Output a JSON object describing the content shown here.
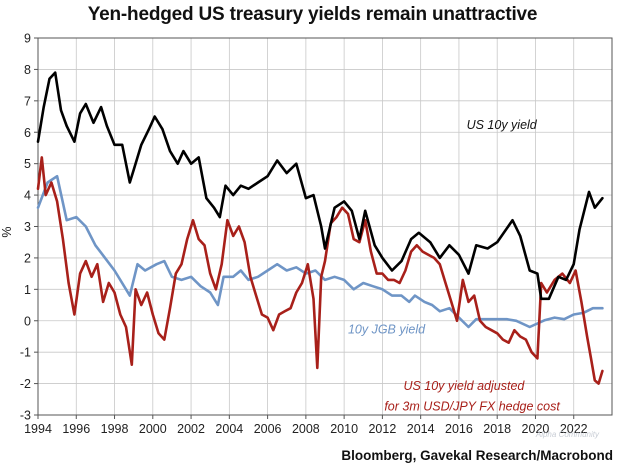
{
  "chart_data": {
    "type": "line",
    "title": "Yen-hedged US treasury yields remain unattractive",
    "xlabel": "",
    "ylabel": "%",
    "xlim": [
      1994,
      2024
    ],
    "ylim": [
      -3,
      9
    ],
    "y_ticks": [
      9,
      8,
      7,
      6,
      5,
      4,
      3,
      2,
      1,
      0,
      -1,
      -2,
      -3
    ],
    "x_ticks": [
      1994,
      1996,
      1998,
      2000,
      2002,
      2004,
      2006,
      2008,
      2010,
      2012,
      2014,
      2016,
      2018,
      2020,
      2022
    ],
    "grid": true,
    "series": [
      {
        "name": "US 10y yield",
        "color": "#000000",
        "x": [
          1994.0,
          1994.3,
          1994.6,
          1994.9,
          1995.2,
          1995.5,
          1995.9,
          1996.2,
          1996.5,
          1996.9,
          1997.3,
          1997.6,
          1998.0,
          1998.4,
          1998.8,
          1999.0,
          1999.4,
          1999.8,
          2000.1,
          2000.5,
          2000.9,
          2001.3,
          2001.6,
          2002.0,
          2002.4,
          2002.8,
          2003.2,
          2003.5,
          2003.8,
          2004.2,
          2004.6,
          2005.0,
          2005.5,
          2006.0,
          2006.5,
          2007.0,
          2007.5,
          2008.0,
          2008.4,
          2008.8,
          2009.0,
          2009.5,
          2010.0,
          2010.4,
          2010.8,
          2011.1,
          2011.6,
          2012.0,
          2012.5,
          2013.0,
          2013.5,
          2013.9,
          2014.5,
          2015.0,
          2015.5,
          2016.0,
          2016.5,
          2016.9,
          2017.5,
          2018.0,
          2018.8,
          2019.2,
          2019.7,
          2020.1,
          2020.3,
          2020.7,
          2021.2,
          2021.6,
          2022.0,
          2022.3,
          2022.8,
          2023.1,
          2023.5
        ],
        "values": [
          5.7,
          6.8,
          7.7,
          7.9,
          6.7,
          6.2,
          5.7,
          6.6,
          6.9,
          6.3,
          6.8,
          6.2,
          5.6,
          5.6,
          4.4,
          4.8,
          5.6,
          6.1,
          6.5,
          6.1,
          5.4,
          5.0,
          5.4,
          5.0,
          5.2,
          3.9,
          3.6,
          3.3,
          4.3,
          4.0,
          4.3,
          4.2,
          4.4,
          4.6,
          5.1,
          4.7,
          5.0,
          3.9,
          4.0,
          3.0,
          2.3,
          3.6,
          3.8,
          3.5,
          2.6,
          3.5,
          2.4,
          2.0,
          1.6,
          1.9,
          2.6,
          2.8,
          2.5,
          2.0,
          2.4,
          2.1,
          1.5,
          2.4,
          2.3,
          2.5,
          3.2,
          2.7,
          1.6,
          1.5,
          0.7,
          0.7,
          1.4,
          1.3,
          1.8,
          2.9,
          4.1,
          3.6,
          3.9
        ]
      },
      {
        "name": "10y JGB yield",
        "color": "#6f95c6",
        "x": [
          1994.0,
          1994.5,
          1995.0,
          1995.5,
          1996.0,
          1996.5,
          1997.0,
          1997.5,
          1998.0,
          1998.6,
          1998.8,
          1999.2,
          1999.6,
          2000.2,
          2000.6,
          2001.0,
          2001.5,
          2002.0,
          2002.5,
          2003.0,
          2003.4,
          2003.7,
          2004.2,
          2004.6,
          2005.0,
          2005.5,
          2006.0,
          2006.5,
          2007.0,
          2007.5,
          2008.0,
          2008.5,
          2009.0,
          2009.5,
          2010.0,
          2010.5,
          2011.0,
          2011.5,
          2012.0,
          2012.5,
          2013.0,
          2013.4,
          2013.7,
          2014.2,
          2014.6,
          2015.0,
          2015.5,
          2016.0,
          2016.5,
          2016.9,
          2017.5,
          2018.0,
          2018.5,
          2019.0,
          2019.7,
          2020.5,
          2021.0,
          2021.5,
          2022.0,
          2022.5,
          2023.0,
          2023.5
        ],
        "values": [
          3.6,
          4.4,
          4.6,
          3.2,
          3.3,
          3.0,
          2.4,
          2.0,
          1.6,
          1.0,
          0.8,
          1.8,
          1.6,
          1.8,
          1.9,
          1.4,
          1.3,
          1.4,
          1.1,
          0.9,
          0.5,
          1.4,
          1.4,
          1.6,
          1.3,
          1.4,
          1.6,
          1.8,
          1.6,
          1.7,
          1.5,
          1.6,
          1.3,
          1.4,
          1.3,
          1.0,
          1.2,
          1.1,
          1.0,
          0.8,
          0.8,
          0.6,
          0.8,
          0.6,
          0.5,
          0.3,
          0.4,
          0.1,
          -0.2,
          0.05,
          0.05,
          0.05,
          0.05,
          0.0,
          -0.2,
          0.02,
          0.1,
          0.05,
          0.2,
          0.25,
          0.4,
          0.4
        ]
      },
      {
        "name": "US 10y yield adjusted for 3m USD/JPY FX hedge cost",
        "color": "#a8201a",
        "x": [
          1994.0,
          1994.2,
          1994.4,
          1994.7,
          1995.0,
          1995.3,
          1995.6,
          1995.9,
          1996.2,
          1996.5,
          1996.8,
          1997.1,
          1997.4,
          1997.7,
          1998.0,
          1998.3,
          1998.6,
          1998.9,
          1999.1,
          1999.4,
          1999.7,
          2000.0,
          2000.3,
          2000.6,
          2000.9,
          2001.2,
          2001.5,
          2001.8,
          2002.1,
          2002.4,
          2002.7,
          2003.0,
          2003.3,
          2003.6,
          2003.9,
          2004.2,
          2004.5,
          2004.8,
          2005.1,
          2005.4,
          2005.7,
          2006.0,
          2006.3,
          2006.6,
          2006.9,
          2007.2,
          2007.5,
          2007.8,
          2008.1,
          2008.4,
          2008.6,
          2008.8,
          2009.0,
          2009.3,
          2009.6,
          2009.9,
          2010.2,
          2010.5,
          2010.8,
          2011.1,
          2011.4,
          2011.7,
          2012.0,
          2012.3,
          2012.6,
          2012.9,
          2013.2,
          2013.5,
          2013.8,
          2014.1,
          2014.4,
          2014.7,
          2015.0,
          2015.3,
          2015.6,
          2015.9,
          2016.2,
          2016.5,
          2016.8,
          2017.1,
          2017.4,
          2017.7,
          2018.0,
          2018.3,
          2018.6,
          2018.9,
          2019.2,
          2019.5,
          2019.8,
          2020.1,
          2020.3,
          2020.6,
          2021.0,
          2021.4,
          2021.8,
          2022.1,
          2022.4,
          2022.7,
          2022.9,
          2023.1,
          2023.3,
          2023.5
        ],
        "values": [
          4.2,
          5.2,
          4.0,
          4.4,
          3.8,
          2.6,
          1.2,
          0.2,
          1.5,
          1.9,
          1.4,
          1.8,
          0.6,
          1.2,
          0.9,
          0.2,
          -0.2,
          -1.4,
          1.0,
          0.5,
          0.9,
          0.2,
          -0.4,
          -0.6,
          0.4,
          1.5,
          1.8,
          2.6,
          3.2,
          2.6,
          2.4,
          1.5,
          1.0,
          1.8,
          3.2,
          2.7,
          3.0,
          2.5,
          1.4,
          0.8,
          0.2,
          0.1,
          -0.3,
          0.2,
          0.3,
          0.4,
          0.9,
          1.2,
          1.8,
          0.7,
          -1.5,
          1.4,
          1.9,
          3.1,
          3.3,
          3.6,
          3.4,
          2.6,
          2.5,
          3.2,
          2.2,
          1.5,
          1.5,
          1.3,
          1.3,
          1.2,
          1.6,
          2.2,
          2.4,
          2.2,
          2.1,
          2.0,
          1.8,
          1.2,
          0.6,
          0.0,
          1.3,
          0.6,
          0.8,
          0.0,
          -0.2,
          -0.3,
          -0.4,
          -0.6,
          -0.7,
          -0.3,
          -0.5,
          -0.6,
          -1.0,
          -1.2,
          1.2,
          0.9,
          1.3,
          1.5,
          1.2,
          1.6,
          0.6,
          -0.5,
          -1.2,
          -1.9,
          -2.0,
          -1.6
        ]
      }
    ],
    "annotations": [
      {
        "text": "US 10y yield",
        "series": "US 10y yield",
        "at": [
          2016.4,
          6.1
        ]
      },
      {
        "text": "10y JGB yield",
        "series": "10y JGB yield",
        "at": [
          2010.2,
          -0.4
        ]
      },
      {
        "text": "US 10y yield adjusted",
        "series": "US 10y yield adjusted for 3m USD/JPY FX hedge cost",
        "at": [
          2013.1,
          -2.2
        ]
      },
      {
        "text": "for 3m USD/JPY FX hedge cost",
        "series": "US 10y yield adjusted for 3m USD/JPY FX hedge cost",
        "at": [
          2012.1,
          -2.85
        ]
      }
    ],
    "source": "Bloomberg, Gavekal Research/Macrobond"
  },
  "watermark": "Alpha Community"
}
